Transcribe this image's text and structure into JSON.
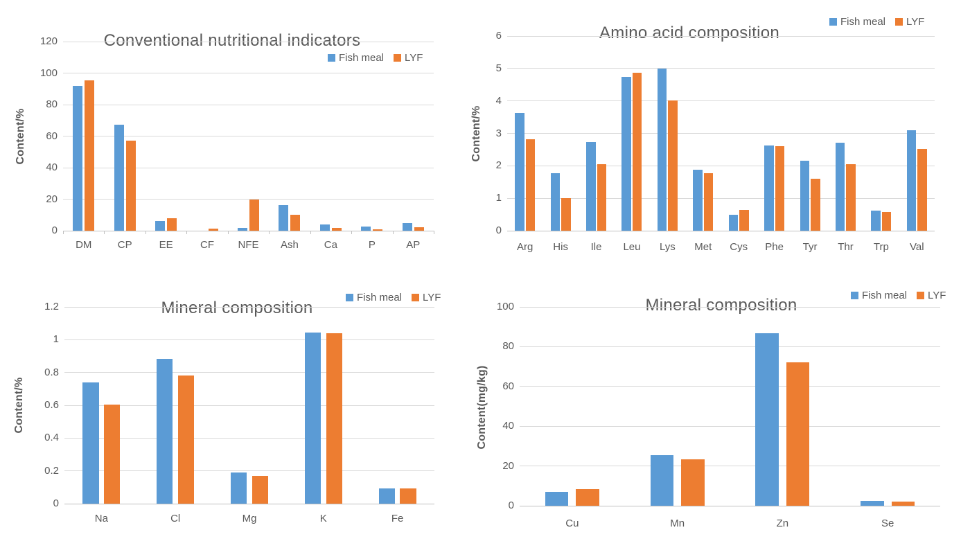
{
  "colors": {
    "fish_meal": "#5B9BD5",
    "lyf": "#ED7D31",
    "text": "#595959",
    "gridline": "#D9D9D9",
    "axis_line": "#BFBFBF",
    "background": "#FFFFFF"
  },
  "legend": {
    "series": [
      "Fish meal",
      "LYF"
    ]
  },
  "chart_data": [
    {
      "type": "bar",
      "title": "Conventional nutritional indicators",
      "xlabel": "",
      "ylabel": "Content/%",
      "ylim": [
        0,
        120
      ],
      "ytick_step": 20,
      "grid": true,
      "legend_position": "inside-top-right",
      "categories": [
        "DM",
        "CP",
        "EE",
        "CF",
        "NFE",
        "Ash",
        "Ca",
        "P",
        "AP"
      ],
      "series": [
        {
          "name": "Fish meal",
          "color": "#5B9BD5",
          "values": [
            92,
            67.4,
            6.3,
            0,
            1.8,
            16.3,
            3.9,
            2.8,
            4.8
          ]
        },
        {
          "name": "LYF",
          "color": "#ED7D31",
          "values": [
            95.3,
            57.2,
            7.8,
            1.2,
            19.7,
            10.2,
            1.9,
            1.1,
            2.3
          ]
        }
      ]
    },
    {
      "type": "bar",
      "title": "Amino acid composition",
      "xlabel": "",
      "ylabel": "Content/%",
      "ylim": [
        0,
        6
      ],
      "ytick_step": 1,
      "grid": true,
      "legend_position": "top-right",
      "categories": [
        "Arg",
        "His",
        "Ile",
        "Leu",
        "Lys",
        "Met",
        "Cys",
        "Phe",
        "Tyr",
        "Thr",
        "Trp",
        "Val"
      ],
      "series": [
        {
          "name": "Fish meal",
          "color": "#5B9BD5",
          "values": [
            3.64,
            1.78,
            2.73,
            4.75,
            4.99,
            1.88,
            0.5,
            2.62,
            2.16,
            2.71,
            0.63,
            3.1
          ]
        },
        {
          "name": "LYF",
          "color": "#ED7D31",
          "values": [
            2.82,
            1.0,
            2.04,
            4.86,
            4.02,
            1.78,
            0.65,
            2.6,
            1.6,
            2.04,
            0.58,
            2.53
          ]
        }
      ]
    },
    {
      "type": "bar",
      "title": "Mineral composition",
      "xlabel": "",
      "ylabel": "Content/%",
      "ylim": [
        0,
        1.2
      ],
      "ytick_step": 0.2,
      "grid": true,
      "legend_position": "top-right",
      "categories": [
        "Na",
        "Cl",
        "Mg",
        "K",
        "Fe"
      ],
      "series": [
        {
          "name": "Fish meal",
          "color": "#5B9BD5",
          "values": [
            0.74,
            0.885,
            0.19,
            1.045,
            0.095
          ]
        },
        {
          "name": "LYF",
          "color": "#ED7D31",
          "values": [
            0.605,
            0.78,
            0.17,
            1.04,
            0.095
          ]
        }
      ]
    },
    {
      "type": "bar",
      "title": "Mineral composition",
      "xlabel": "",
      "ylabel": "Content(mg/kg)",
      "ylim": [
        0,
        100
      ],
      "ytick_step": 20,
      "grid": true,
      "legend_position": "top-right",
      "categories": [
        "Cu",
        "Mn",
        "Zn",
        "Se"
      ],
      "series": [
        {
          "name": "Fish meal",
          "color": "#5B9BD5",
          "values": [
            7,
            25.6,
            86.7,
            2.3
          ]
        },
        {
          "name": "LYF",
          "color": "#ED7D31",
          "values": [
            8.2,
            23.2,
            72,
            2
          ]
        }
      ]
    }
  ]
}
